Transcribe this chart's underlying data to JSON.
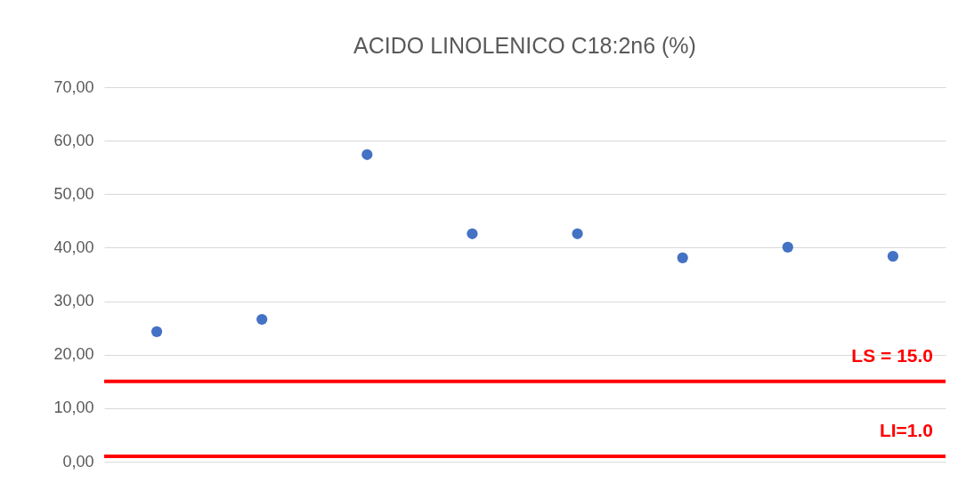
{
  "chart_data": {
    "type": "scatter",
    "title": "ACIDO LINOLENICO C18:2n6  (%)",
    "categories": [
      null,
      null,
      null,
      null,
      null,
      null,
      null,
      null
    ],
    "series": [
      {
        "color": "#4472c4",
        "values": [
          24.3,
          26.6,
          57.4,
          42.6,
          42.6,
          38.1,
          40.1,
          38.4
        ]
      }
    ],
    "ylim": [
      0,
      70
    ],
    "yticks": [
      {
        "value": 0,
        "label": "0,00"
      },
      {
        "value": 10,
        "label": "10,00"
      },
      {
        "value": 20,
        "label": "20,00"
      },
      {
        "value": 30,
        "label": "30,00"
      },
      {
        "value": 40,
        "label": "40,00"
      },
      {
        "value": 50,
        "label": "50,00"
      },
      {
        "value": 60,
        "label": "60,00"
      },
      {
        "value": 70,
        "label": "70,00"
      }
    ],
    "ref_lines": [
      {
        "axis": "y",
        "value": 15.0,
        "label": "LS = 15.0",
        "color": "#ff0000"
      },
      {
        "axis": "y",
        "value": 1.0,
        "label": "LI=1.0",
        "color": "#ff0000"
      }
    ],
    "grid": "y",
    "marker": "circle"
  }
}
